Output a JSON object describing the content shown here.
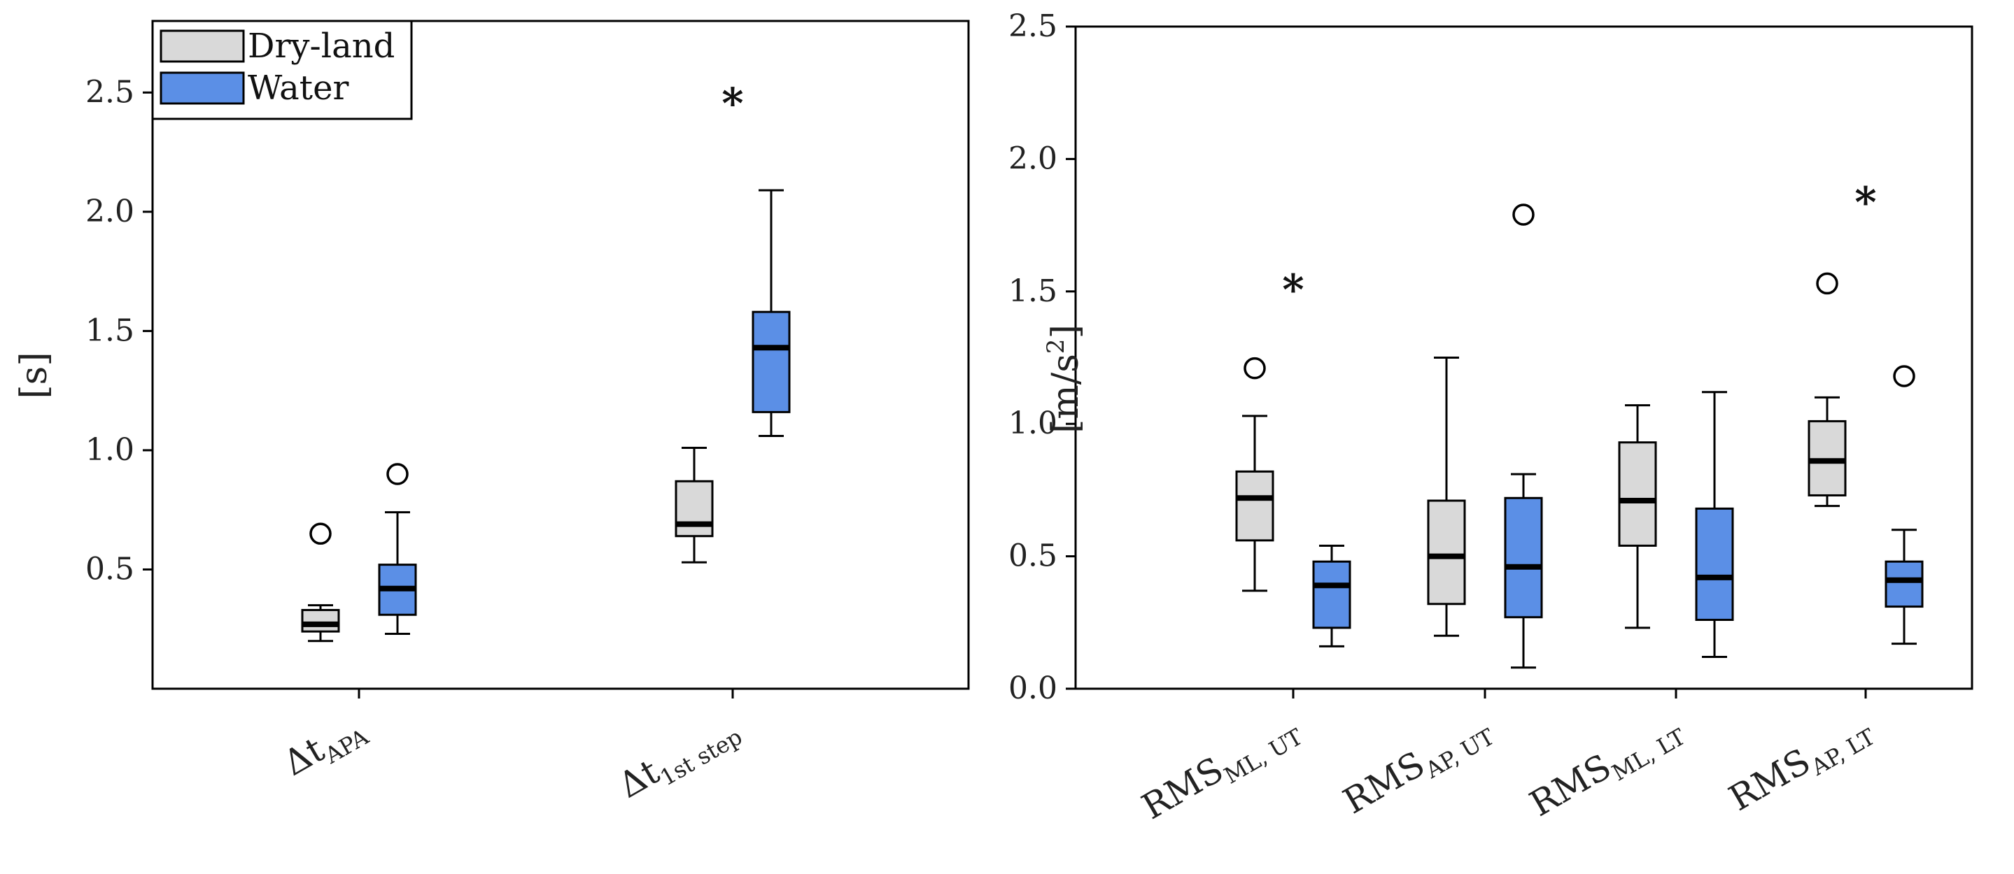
{
  "chart_data": [
    {
      "type": "boxplot",
      "title": "",
      "ylabel": "[s]",
      "ylim": [
        0.0,
        2.8
      ],
      "yticks": [
        0.5,
        1.0,
        1.5,
        2.0,
        2.5
      ],
      "ytick_labels": [
        "0.5",
        "1.0",
        "1.5",
        "2.0",
        "2.5"
      ],
      "grid": false,
      "legend": {
        "placement": "top-left",
        "entries": [
          {
            "label": "Dry-land",
            "color": "#d9d9d9"
          },
          {
            "label": "Water",
            "color": "#5b8fe6"
          }
        ]
      },
      "categories": [
        {
          "base": "Δt",
          "sub": "APA"
        },
        {
          "base": "Δt",
          "sub": "1st step"
        }
      ],
      "series": [
        {
          "name": "Dry-land",
          "color": "#d9d9d9",
          "boxes": [
            {
              "whisker_low": 0.2,
              "q1": 0.24,
              "median": 0.27,
              "q3": 0.33,
              "whisker_high": 0.35,
              "outliers": [
                0.65
              ]
            },
            {
              "whisker_low": 0.53,
              "q1": 0.64,
              "median": 0.69,
              "q3": 0.87,
              "whisker_high": 1.01,
              "outliers": []
            }
          ]
        },
        {
          "name": "Water",
          "color": "#5b8fe6",
          "boxes": [
            {
              "whisker_low": 0.23,
              "q1": 0.31,
              "median": 0.42,
              "q3": 0.52,
              "whisker_high": 0.74,
              "outliers": [
                0.9
              ]
            },
            {
              "whisker_low": 1.06,
              "q1": 1.16,
              "median": 1.43,
              "q3": 1.58,
              "whisker_high": 2.09,
              "outliers": []
            }
          ]
        }
      ],
      "annotations": [
        {
          "category_index": 1,
          "text": "*",
          "y": 2.47
        }
      ]
    },
    {
      "type": "boxplot",
      "title": "",
      "ylabel": "[m/s",
      "ylabel_sup": "2",
      "ylabel_close": "]",
      "ylim": [
        0.0,
        2.5
      ],
      "yticks": [
        0.0,
        0.5,
        1.0,
        1.5,
        2.0,
        2.5
      ],
      "ytick_labels": [
        "0.0",
        "0.5",
        "1.0",
        "1.5",
        "2.0",
        "2.5"
      ],
      "grid": false,
      "categories": [
        {
          "base": "RMS",
          "sub": "ML, UT"
        },
        {
          "base": "RMS",
          "sub": "AP, UT"
        },
        {
          "base": "RMS",
          "sub": "ML, LT"
        },
        {
          "base": "RMS",
          "sub": "AP, LT"
        }
      ],
      "series": [
        {
          "name": "Dry-land",
          "color": "#d9d9d9",
          "boxes": [
            {
              "whisker_low": 0.37,
              "q1": 0.56,
              "median": 0.72,
              "q3": 0.82,
              "whisker_high": 1.03,
              "outliers": [
                1.21
              ]
            },
            {
              "whisker_low": 0.2,
              "q1": 0.32,
              "median": 0.5,
              "q3": 0.71,
              "whisker_high": 1.25,
              "outliers": []
            },
            {
              "whisker_low": 0.23,
              "q1": 0.54,
              "median": 0.71,
              "q3": 0.93,
              "whisker_high": 1.07,
              "outliers": []
            },
            {
              "whisker_low": 0.69,
              "q1": 0.73,
              "median": 0.86,
              "q3": 1.01,
              "whisker_high": 1.1,
              "outliers": [
                1.53
              ]
            }
          ]
        },
        {
          "name": "Water",
          "color": "#5b8fe6",
          "boxes": [
            {
              "whisker_low": 0.16,
              "q1": 0.23,
              "median": 0.39,
              "q3": 0.48,
              "whisker_high": 0.54,
              "outliers": []
            },
            {
              "whisker_low": 0.08,
              "q1": 0.27,
              "median": 0.46,
              "q3": 0.72,
              "whisker_high": 0.81,
              "outliers": [
                1.79
              ]
            },
            {
              "whisker_low": 0.12,
              "q1": 0.26,
              "median": 0.42,
              "q3": 0.68,
              "whisker_high": 1.12,
              "outliers": []
            },
            {
              "whisker_low": 0.17,
              "q1": 0.31,
              "median": 0.41,
              "q3": 0.48,
              "whisker_high": 0.6,
              "outliers": [
                1.18
              ]
            }
          ]
        }
      ],
      "annotations": [
        {
          "category_index": 0,
          "text": "*",
          "y": 1.52
        },
        {
          "category_index": 3,
          "text": "*",
          "y": 1.85
        }
      ]
    }
  ]
}
